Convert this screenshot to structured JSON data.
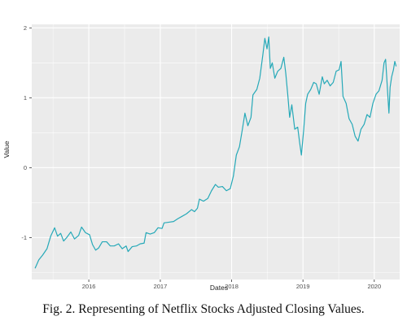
{
  "figure": {
    "corner_text": "",
    "caption": "Fig. 2.   Representing of Netflix Stocks Adjusted Closing Values."
  },
  "chart_data": {
    "type": "line",
    "title": "",
    "xlabel": "Dates",
    "ylabel": "Value",
    "x_range": [
      "2015-03-15",
      "2020-05-10"
    ],
    "ylim": [
      -1.6,
      2.05
    ],
    "x_tick_values": [
      "2016-01-01",
      "2017-01-01",
      "2018-01-01",
      "2019-01-01",
      "2020-01-01"
    ],
    "x_tick_labels": [
      "2016",
      "2017",
      "2018",
      "2019",
      "2020"
    ],
    "y_ticks": [
      -1,
      0,
      1,
      2
    ],
    "y_tick_labels": [
      "-1",
      "0",
      "1",
      "2"
    ],
    "grid": true,
    "legend": "none",
    "colors": {
      "line": "#26a9b8",
      "panel": "#ebebeb",
      "grid": "#ffffff"
    },
    "series": [
      {
        "points": [
          [
            "2015-04-01",
            -1.44
          ],
          [
            "2015-04-20",
            -1.32
          ],
          [
            "2015-05-10",
            -1.25
          ],
          [
            "2015-06-01",
            -1.16
          ],
          [
            "2015-06-20",
            -0.98
          ],
          [
            "2015-07-10",
            -0.86
          ],
          [
            "2015-07-25",
            -0.98
          ],
          [
            "2015-08-10",
            -0.94
          ],
          [
            "2015-08-25",
            -1.05
          ],
          [
            "2015-09-10",
            -1.0
          ],
          [
            "2015-10-01",
            -0.92
          ],
          [
            "2015-10-20",
            -1.02
          ],
          [
            "2015-11-10",
            -0.97
          ],
          [
            "2015-11-25",
            -0.85
          ],
          [
            "2015-12-15",
            -0.93
          ],
          [
            "2016-01-05",
            -0.96
          ],
          [
            "2016-01-20",
            -1.1
          ],
          [
            "2016-02-05",
            -1.18
          ],
          [
            "2016-02-20",
            -1.15
          ],
          [
            "2016-03-10",
            -1.06
          ],
          [
            "2016-04-01",
            -1.06
          ],
          [
            "2016-04-20",
            -1.12
          ],
          [
            "2016-05-10",
            -1.12
          ],
          [
            "2016-06-01",
            -1.09
          ],
          [
            "2016-06-20",
            -1.16
          ],
          [
            "2016-07-10",
            -1.12
          ],
          [
            "2016-07-20",
            -1.2
          ],
          [
            "2016-08-10",
            -1.13
          ],
          [
            "2016-09-01",
            -1.12
          ],
          [
            "2016-09-20",
            -1.09
          ],
          [
            "2016-10-10",
            -1.08
          ],
          [
            "2016-10-20",
            -0.93
          ],
          [
            "2016-11-10",
            -0.95
          ],
          [
            "2016-12-01",
            -0.93
          ],
          [
            "2016-12-20",
            -0.86
          ],
          [
            "2017-01-10",
            -0.87
          ],
          [
            "2017-01-20",
            -0.79
          ],
          [
            "2017-02-15",
            -0.78
          ],
          [
            "2017-03-10",
            -0.77
          ],
          [
            "2017-04-01",
            -0.73
          ],
          [
            "2017-04-20",
            -0.7
          ],
          [
            "2017-05-15",
            -0.66
          ],
          [
            "2017-06-10",
            -0.6
          ],
          [
            "2017-06-25",
            -0.63
          ],
          [
            "2017-07-10",
            -0.58
          ],
          [
            "2017-07-20",
            -0.45
          ],
          [
            "2017-08-10",
            -0.48
          ],
          [
            "2017-09-01",
            -0.44
          ],
          [
            "2017-09-20",
            -0.33
          ],
          [
            "2017-10-10",
            -0.24
          ],
          [
            "2017-10-25",
            -0.28
          ],
          [
            "2017-11-15",
            -0.27
          ],
          [
            "2017-12-05",
            -0.33
          ],
          [
            "2017-12-25",
            -0.3
          ],
          [
            "2018-01-10",
            -0.12
          ],
          [
            "2018-01-25",
            0.18
          ],
          [
            "2018-02-10",
            0.3
          ],
          [
            "2018-02-25",
            0.55
          ],
          [
            "2018-03-10",
            0.78
          ],
          [
            "2018-03-25",
            0.6
          ],
          [
            "2018-04-10",
            0.72
          ],
          [
            "2018-04-20",
            1.04
          ],
          [
            "2018-05-10",
            1.12
          ],
          [
            "2018-05-25",
            1.28
          ],
          [
            "2018-06-10",
            1.62
          ],
          [
            "2018-06-20",
            1.85
          ],
          [
            "2018-07-01",
            1.7
          ],
          [
            "2018-07-10",
            1.87
          ],
          [
            "2018-07-18",
            1.42
          ],
          [
            "2018-07-28",
            1.5
          ],
          [
            "2018-08-10",
            1.28
          ],
          [
            "2018-08-25",
            1.38
          ],
          [
            "2018-09-10",
            1.42
          ],
          [
            "2018-09-25",
            1.58
          ],
          [
            "2018-10-05",
            1.35
          ],
          [
            "2018-10-15",
            1.05
          ],
          [
            "2018-10-25",
            0.72
          ],
          [
            "2018-11-05",
            0.9
          ],
          [
            "2018-11-20",
            0.55
          ],
          [
            "2018-12-05",
            0.58
          ],
          [
            "2018-12-15",
            0.36
          ],
          [
            "2018-12-24",
            0.18
          ],
          [
            "2019-01-05",
            0.55
          ],
          [
            "2019-01-15",
            0.92
          ],
          [
            "2019-01-25",
            1.05
          ],
          [
            "2019-02-10",
            1.12
          ],
          [
            "2019-02-25",
            1.22
          ],
          [
            "2019-03-10",
            1.2
          ],
          [
            "2019-03-25",
            1.05
          ],
          [
            "2019-04-10",
            1.3
          ],
          [
            "2019-04-20",
            1.2
          ],
          [
            "2019-05-05",
            1.25
          ],
          [
            "2019-05-20",
            1.17
          ],
          [
            "2019-06-05",
            1.22
          ],
          [
            "2019-06-20",
            1.38
          ],
          [
            "2019-07-05",
            1.4
          ],
          [
            "2019-07-15",
            1.52
          ],
          [
            "2019-07-25",
            1.02
          ],
          [
            "2019-08-10",
            0.92
          ],
          [
            "2019-08-25",
            0.7
          ],
          [
            "2019-09-10",
            0.62
          ],
          [
            "2019-09-25",
            0.45
          ],
          [
            "2019-10-10",
            0.38
          ],
          [
            "2019-10-25",
            0.55
          ],
          [
            "2019-11-10",
            0.62
          ],
          [
            "2019-11-25",
            0.76
          ],
          [
            "2019-12-10",
            0.72
          ],
          [
            "2019-12-25",
            0.92
          ],
          [
            "2020-01-10",
            1.05
          ],
          [
            "2020-01-25",
            1.1
          ],
          [
            "2020-02-10",
            1.25
          ],
          [
            "2020-02-20",
            1.5
          ],
          [
            "2020-02-28",
            1.55
          ],
          [
            "2020-03-05",
            1.28
          ],
          [
            "2020-03-10",
            1.05
          ],
          [
            "2020-03-16",
            0.78
          ],
          [
            "2020-03-22",
            1.15
          ],
          [
            "2020-03-30",
            1.3
          ],
          [
            "2020-04-08",
            1.4
          ],
          [
            "2020-04-15",
            1.52
          ],
          [
            "2020-04-22",
            1.45
          ]
        ]
      }
    ]
  }
}
